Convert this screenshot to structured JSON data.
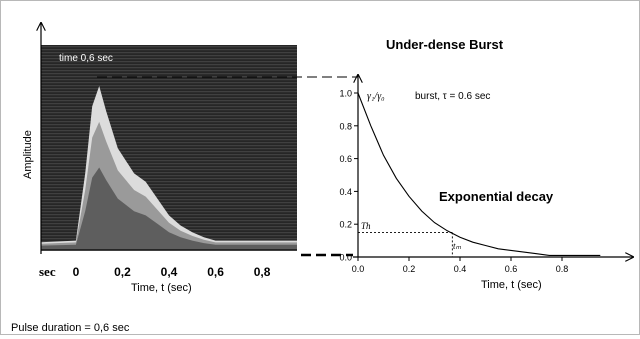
{
  "left_panel": {
    "overlay_label": "time 0,6 sec",
    "ylabel": "Amplitude",
    "x_unit": "sec",
    "tick_labels": [
      "0",
      "0,2",
      "0,4",
      "0,6",
      "0,8"
    ],
    "xlabel": "Time, t (sec)",
    "pulse_duration_text": "Pulse duration = 0,6 sec"
  },
  "right_panel": {
    "title": "Under-dense Burst",
    "annotation_gamma": "γ₁/γ₀",
    "annotation_burst": "burst, τ = 0.6 sec",
    "decay_label": "Exponential decay",
    "threshold_label": "Th",
    "tm_label": "tₘ",
    "xlabel": "Time, t (sec)"
  },
  "chart_data": [
    {
      "type": "area",
      "title": "",
      "xlabel": "Time, t (sec)",
      "ylabel": "Amplitude",
      "x_ticks": [
        "0",
        "0,2",
        "0,4",
        "0,6",
        "0,8"
      ],
      "xlim": [
        -0.15,
        0.95
      ],
      "pulse_duration_sec": 0.6,
      "peak_time_sec": 0.1,
      "envelope": {
        "x": [
          -0.15,
          0.0,
          0.04,
          0.07,
          0.1,
          0.13,
          0.18,
          0.25,
          0.3,
          0.35,
          0.4,
          0.45,
          0.5,
          0.55,
          0.6,
          0.95
        ],
        "y": [
          0.04,
          0.05,
          0.45,
          0.85,
          0.97,
          0.82,
          0.6,
          0.45,
          0.4,
          0.3,
          0.2,
          0.14,
          0.1,
          0.07,
          0.05,
          0.05
        ]
      }
    },
    {
      "type": "line",
      "title": "Under-dense Burst",
      "xlabel": "Time, t (sec)",
      "ylabel": "γ₁/γ₀",
      "xlim": [
        0,
        0.95
      ],
      "ylim": [
        0,
        1.0
      ],
      "x_ticks": [
        0.0,
        0.2,
        0.4,
        0.6,
        0.8
      ],
      "y_ticks": [
        0.0,
        0.2,
        0.4,
        0.6,
        0.8,
        1.0
      ],
      "y_tick_labels": [
        "0.0",
        "0.2",
        "0.4",
        "0.6",
        "0.8",
        "1.0"
      ],
      "series": [
        {
          "name": "burst, τ = 0.6 sec",
          "x": [
            0.0,
            0.05,
            0.1,
            0.15,
            0.2,
            0.25,
            0.3,
            0.35,
            0.4,
            0.45,
            0.5,
            0.55,
            0.6,
            0.65,
            0.7,
            0.75,
            0.8,
            0.85,
            0.9,
            0.95
          ],
          "y": [
            1.0,
            0.8,
            0.62,
            0.48,
            0.37,
            0.28,
            0.21,
            0.16,
            0.12,
            0.09,
            0.07,
            0.05,
            0.04,
            0.03,
            0.02,
            0.01,
            0.01,
            0.01,
            0.01,
            0.01
          ]
        }
      ],
      "threshold": 0.15,
      "t_m": 0.37
    }
  ]
}
